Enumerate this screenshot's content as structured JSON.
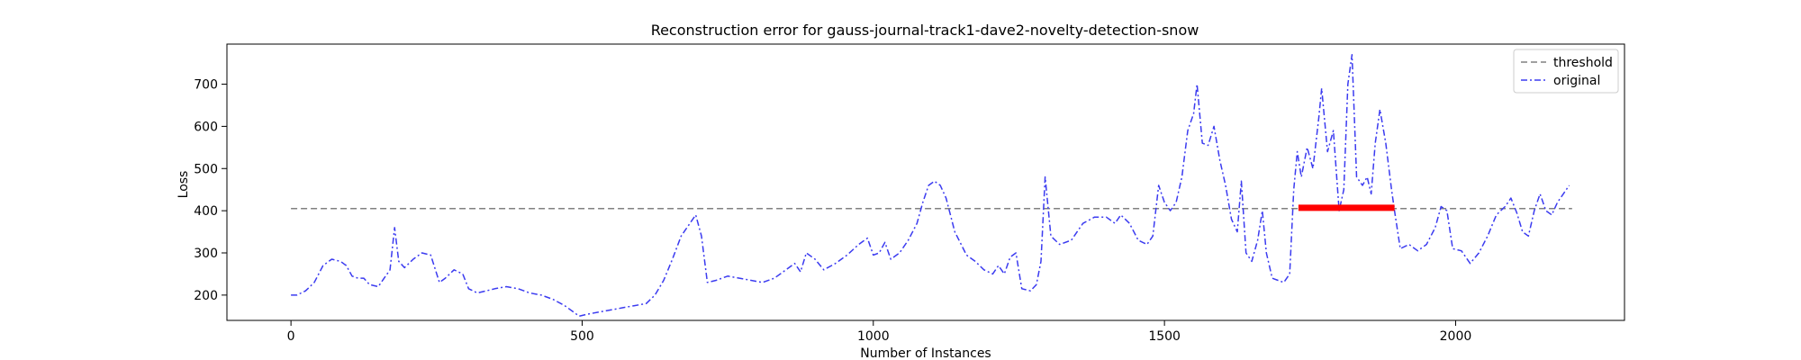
{
  "chart_data": {
    "type": "line",
    "title": "Reconstruction error for gauss-journal-track1-dave2-novelty-detection-snow",
    "xlabel": "Number of Instances",
    "ylabel": "Loss",
    "xlim": [
      -110,
      2290
    ],
    "ylim": [
      140,
      795
    ],
    "xticks": [
      0,
      500,
      1000,
      1500,
      2000
    ],
    "yticks": [
      200,
      300,
      400,
      500,
      600,
      700
    ],
    "grid": false,
    "legend_position": "top-right",
    "series": [
      {
        "name": "threshold",
        "style": "dashed",
        "color": "#808080",
        "x": [
          0,
          2200
        ],
        "y": [
          405,
          405
        ]
      },
      {
        "name": "original",
        "style": "dashdot",
        "color": "#3b3bf0",
        "x": [
          0,
          10,
          25,
          40,
          55,
          70,
          85,
          95,
          105,
          115,
          125,
          135,
          150,
          160,
          170,
          178,
          185,
          195,
          210,
          225,
          240,
          255,
          265,
          280,
          295,
          305,
          320,
          335,
          350,
          370,
          390,
          410,
          430,
          450,
          470,
          485,
          495,
          510,
          530,
          550,
          570,
          590,
          610,
          625,
          640,
          655,
          670,
          685,
          695,
          705,
          715,
          730,
          750,
          770,
          790,
          810,
          830,
          850,
          865,
          875,
          885,
          900,
          915,
          935,
          955,
          975,
          990,
          1000,
          1010,
          1020,
          1030,
          1045,
          1060,
          1075,
          1085,
          1095,
          1105,
          1115,
          1125,
          1140,
          1160,
          1175,
          1190,
          1205,
          1215,
          1225,
          1235,
          1245,
          1255,
          1270,
          1280,
          1288,
          1295,
          1305,
          1320,
          1340,
          1360,
          1380,
          1400,
          1415,
          1425,
          1440,
          1455,
          1470,
          1480,
          1490,
          1500,
          1510,
          1520,
          1530,
          1540,
          1550,
          1556,
          1565,
          1575,
          1585,
          1595,
          1605,
          1615,
          1625,
          1632,
          1640,
          1650,
          1660,
          1668,
          1675,
          1685,
          1695,
          1705,
          1715,
          1722,
          1728,
          1735,
          1745,
          1755,
          1765,
          1770,
          1780,
          1790,
          1800,
          1808,
          1815,
          1822,
          1830,
          1840,
          1848,
          1855,
          1862,
          1870,
          1880,
          1890,
          1895,
          1905,
          1920,
          1935,
          1950,
          1965,
          1975,
          1985,
          1995,
          2010,
          2025,
          2040,
          2055,
          2070,
          2085,
          2095,
          2105,
          2115,
          2125,
          2135,
          2145,
          2155,
          2165,
          2175,
          2185,
          2195
        ],
        "y": [
          200,
          200,
          210,
          230,
          270,
          285,
          280,
          270,
          245,
          240,
          240,
          225,
          220,
          240,
          260,
          360,
          280,
          265,
          285,
          300,
          295,
          230,
          240,
          260,
          250,
          215,
          205,
          210,
          215,
          220,
          215,
          205,
          200,
          190,
          175,
          160,
          150,
          155,
          160,
          165,
          170,
          175,
          180,
          200,
          235,
          285,
          340,
          370,
          390,
          340,
          230,
          235,
          245,
          240,
          235,
          230,
          240,
          260,
          275,
          255,
          300,
          285,
          260,
          275,
          295,
          320,
          335,
          295,
          300,
          325,
          285,
          300,
          330,
          370,
          420,
          460,
          470,
          460,
          430,
          350,
          295,
          280,
          260,
          250,
          270,
          250,
          290,
          300,
          215,
          210,
          225,
          280,
          480,
          340,
          320,
          330,
          370,
          385,
          385,
          370,
          390,
          370,
          330,
          320,
          340,
          460,
          420,
          400,
          420,
          480,
          590,
          630,
          700,
          560,
          555,
          600,
          520,
          460,
          380,
          350,
          470,
          300,
          280,
          330,
          400,
          300,
          240,
          235,
          230,
          250,
          450,
          540,
          480,
          550,
          500,
          620,
          690,
          540,
          590,
          400,
          450,
          700,
          770,
          480,
          460,
          480,
          440,
          560,
          640,
          560,
          450,
          400,
          310,
          320,
          305,
          320,
          360,
          410,
          400,
          310,
          305,
          275,
          300,
          340,
          390,
          410,
          430,
          395,
          350,
          340,
          400,
          440,
          400,
          390,
          420,
          440,
          460
        ]
      },
      {
        "name": "",
        "style": "solid",
        "color": "#ff0000",
        "x": [
          1730,
          1895
        ],
        "y": [
          407,
          407
        ]
      }
    ]
  }
}
